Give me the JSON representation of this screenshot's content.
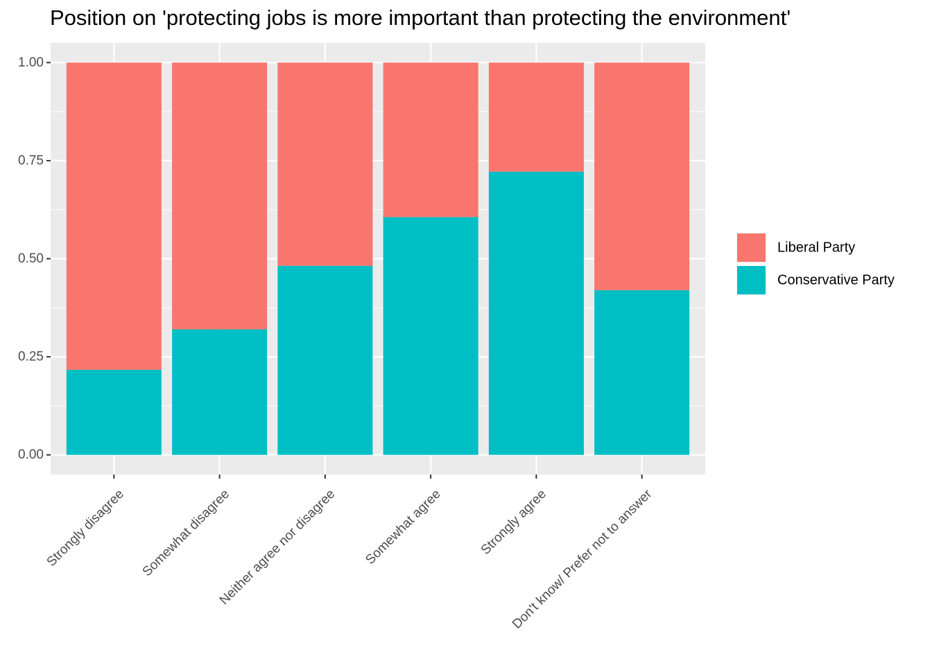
{
  "chart_data": {
    "type": "bar",
    "stacked": true,
    "title": "Position on 'protecting jobs is more important than protecting the environment'",
    "xlabel": "",
    "ylabel": "",
    "categories": [
      "Strongly disagree",
      "Somewhat disagree",
      "Neither agree nor disagree",
      "Somewhat agree",
      "Strongly agree",
      "Don't know/ Prefer not to answer"
    ],
    "series": [
      {
        "name": "Conservative Party",
        "color": "#00BFC4",
        "values": [
          0.217,
          0.32,
          0.482,
          0.606,
          0.722,
          0.42
        ]
      },
      {
        "name": "Liberal Party",
        "color": "#F8766D",
        "values": [
          0.783,
          0.68,
          0.518,
          0.394,
          0.278,
          0.58
        ]
      }
    ],
    "ylim": [
      -0.05,
      1.05
    ],
    "yticks": [
      0.0,
      0.25,
      0.5,
      0.75,
      1.0
    ],
    "ytick_labels": [
      "0.00",
      "0.25",
      "0.50",
      "0.75",
      "1.00"
    ],
    "legend": {
      "position": "right",
      "order": [
        "Liberal Party",
        "Conservative Party"
      ]
    },
    "grid": true,
    "panel_background": "#EBEBEB"
  }
}
